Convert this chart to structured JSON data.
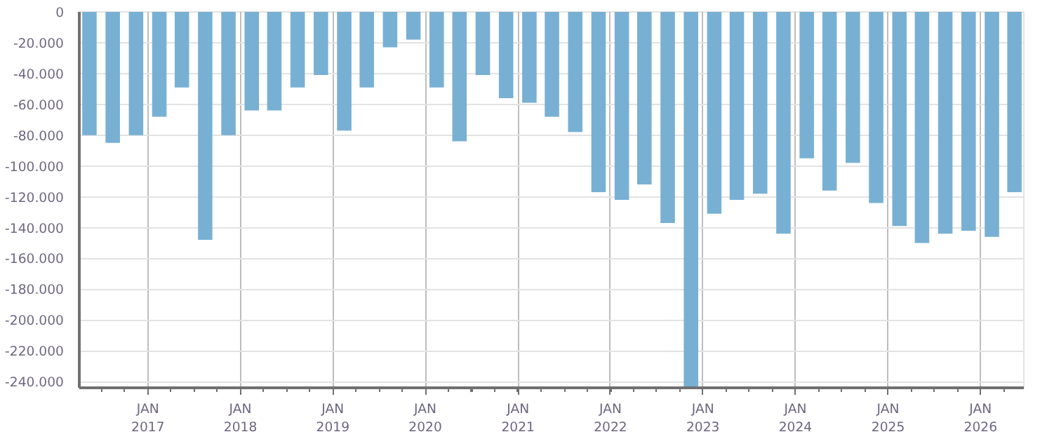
{
  "chart_data": {
    "type": "bar",
    "color": "#78b0d3",
    "x": [
      "2016-05-15",
      "2016-08-15",
      "2016-11-15",
      "2017-02-15",
      "2017-05-15",
      "2017-08-15",
      "2017-11-15",
      "2018-02-15",
      "2018-05-15",
      "2018-08-15",
      "2018-11-15",
      "2019-02-15",
      "2019-05-15",
      "2019-08-15",
      "2019-11-15",
      "2020-02-15",
      "2020-05-15",
      "2020-08-15",
      "2020-11-15",
      "2021-02-15",
      "2021-05-15",
      "2021-08-15",
      "2021-11-15",
      "2022-02-15",
      "2022-05-15",
      "2022-08-15",
      "2022-11-15",
      "2023-02-15",
      "2023-05-15",
      "2023-08-15",
      "2023-11-15",
      "2024-02-15",
      "2024-05-15",
      "2024-08-15",
      "2024-11-15",
      "2025-02-15",
      "2025-05-15",
      "2025-08-15",
      "2025-11-15",
      "2026-02-15",
      "2026-05-15"
    ],
    "values": [
      -80000,
      -85000,
      -80000,
      -68000,
      -49000,
      -148000,
      -80000,
      -64000,
      -64000,
      -49000,
      -41000,
      -77000,
      -49000,
      -23000,
      -18000,
      -49000,
      -84000,
      -41000,
      -56000,
      -59000,
      -68000,
      -78000,
      -117000,
      -122000,
      -112000,
      -137000,
      -244000,
      -131000,
      -122000,
      -118000,
      -144000,
      -95000,
      -116000,
      -98000,
      -124000,
      -139000,
      -150000,
      -144000,
      -142000,
      -146000,
      -117000
    ],
    "xlim": [
      "2016-04-05",
      "2026-06-21"
    ],
    "xticks": [
      {
        "value": "2017-01-01",
        "label": "JAN\n2017"
      },
      {
        "value": "2018-01-01",
        "label": "JAN\n2018"
      },
      {
        "value": "2019-01-01",
        "label": "JAN\n2019"
      },
      {
        "value": "2020-01-01",
        "label": "JAN\n2020"
      },
      {
        "value": "2021-01-01",
        "label": "JAN\n2021"
      },
      {
        "value": "2022-01-01",
        "label": "JAN\n2022"
      },
      {
        "value": "2023-01-01",
        "label": "JAN\n2023"
      },
      {
        "value": "2024-01-01",
        "label": "JAN\n2024"
      },
      {
        "value": "2025-01-01",
        "label": "JAN\n2025"
      },
      {
        "value": "2026-01-01",
        "label": "JAN\n2026"
      }
    ],
    "ylim": [
      -244000,
      0
    ],
    "yticks": [
      {
        "value": 0,
        "label": "0"
      },
      {
        "value": -20000,
        "label": "-20.000"
      },
      {
        "value": -40000,
        "label": "-40.000"
      },
      {
        "value": -60000,
        "label": "-60.000"
      },
      {
        "value": -80000,
        "label": "-80.000"
      },
      {
        "value": -100000,
        "label": "-100.000"
      },
      {
        "value": -120000,
        "label": "-120.000"
      },
      {
        "value": -140000,
        "label": "-140.000"
      },
      {
        "value": -160000,
        "label": "-160.000"
      },
      {
        "value": -180000,
        "label": "-180.000"
      },
      {
        "value": -200000,
        "label": "-200.000"
      },
      {
        "value": -220000,
        "label": "-220.000"
      },
      {
        "value": -240000,
        "label": "-240.000"
      }
    ],
    "grid": true
  }
}
